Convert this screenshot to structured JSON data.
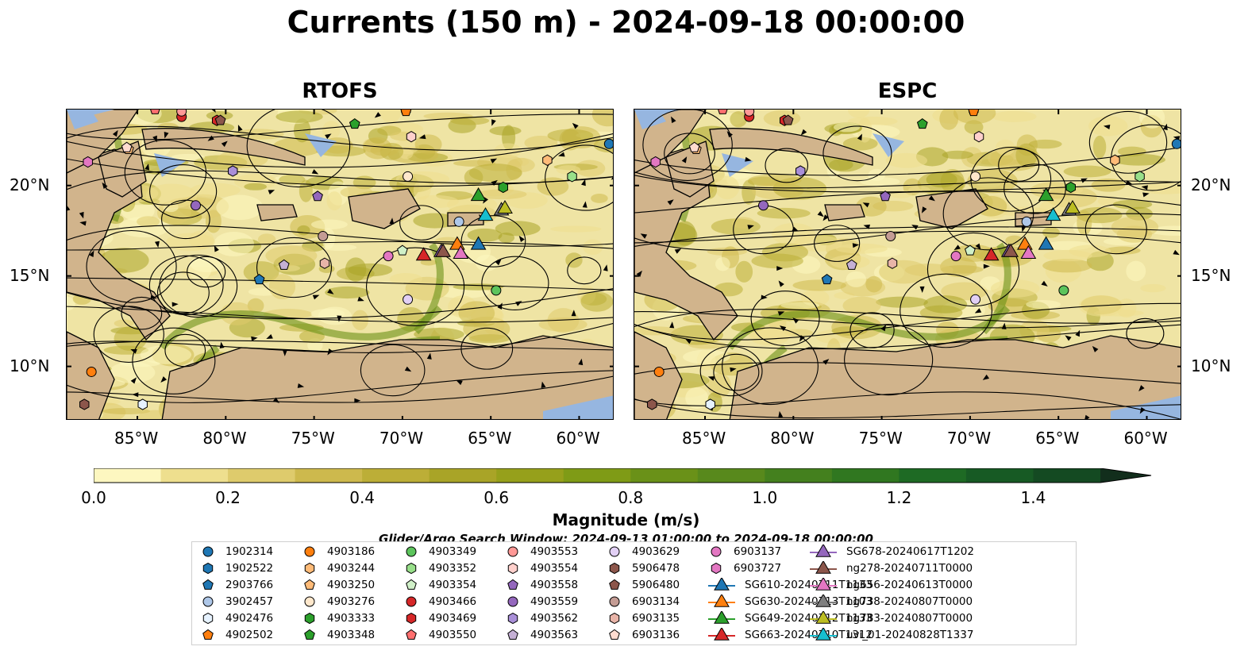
{
  "figure": {
    "title": "Currents (150 m) - 2024-09-18 00:00:00",
    "panels": [
      "RTOFS",
      "ESPC"
    ]
  },
  "axes": {
    "lon_ticks": [
      "85°W",
      "80°W",
      "75°W",
      "70°W",
      "65°W",
      "60°W"
    ],
    "lat_ticks": [
      "20°N",
      "15°N",
      "10°N"
    ],
    "lon_values": [
      -85,
      -80,
      -75,
      -70,
      -65,
      -60
    ],
    "lat_values": [
      20,
      15,
      10
    ],
    "lon_range": [
      -89,
      -58
    ],
    "lat_range": [
      7,
      24.2
    ]
  },
  "colorbar": {
    "label": "Magnitude (m/s)",
    "ticks": [
      "0.0",
      "0.2",
      "0.4",
      "0.6",
      "0.8",
      "1.0",
      "1.2",
      "1.4"
    ],
    "tick_values": [
      0,
      0.2,
      0.4,
      0.6,
      0.8,
      1.0,
      1.2,
      1.4
    ],
    "range": [
      0,
      1.5
    ],
    "extend": "max",
    "colors": [
      "#fdf7c0",
      "#eedf8e",
      "#decb6c",
      "#cdb94d",
      "#bcae37",
      "#a9a427",
      "#96a01b",
      "#7f9b16",
      "#6a9118",
      "#58891c",
      "#44801e",
      "#307720",
      "#1e6a24",
      "#175a24",
      "#144a22",
      "#122e1c"
    ]
  },
  "search_window": "Glider/Argo Search Window: 2024-09-13 01:00:00 to 2024-09-18 00:00:00",
  "legend": {
    "items": [
      {
        "label": "1902314",
        "marker": "circle",
        "color": "#1f77b4"
      },
      {
        "label": "1902522",
        "marker": "hexagon",
        "color": "#1f77b4"
      },
      {
        "label": "2903766",
        "marker": "pentagon",
        "color": "#1f77b4"
      },
      {
        "label": "3902457",
        "marker": "circle",
        "color": "#aec7e8"
      },
      {
        "label": "4902476",
        "marker": "hexagon",
        "color": "#e6f2ff"
      },
      {
        "label": "4902502",
        "marker": "pentagon",
        "color": "#ff7f0e"
      },
      {
        "label": "4903186",
        "marker": "circle",
        "color": "#ff7f0e"
      },
      {
        "label": "4903244",
        "marker": "hexagon",
        "color": "#ffbb78"
      },
      {
        "label": "4903250",
        "marker": "pentagon",
        "color": "#ffbb78"
      },
      {
        "label": "4903276",
        "marker": "circle",
        "color": "#ffe8cc"
      },
      {
        "label": "4903333",
        "marker": "hexagon",
        "color": "#2ca02c"
      },
      {
        "label": "4903348",
        "marker": "pentagon",
        "color": "#2ca02c"
      },
      {
        "label": "4903349",
        "marker": "circle",
        "color": "#5cc45c"
      },
      {
        "label": "4903352",
        "marker": "hexagon",
        "color": "#98df8a"
      },
      {
        "label": "4903354",
        "marker": "pentagon",
        "color": "#d0f0c8"
      },
      {
        "label": "4903466",
        "marker": "circle",
        "color": "#d62728"
      },
      {
        "label": "4903469",
        "marker": "hexagon",
        "color": "#d62728"
      },
      {
        "label": "4903550",
        "marker": "pentagon",
        "color": "#ff6f6f"
      },
      {
        "label": "4903553",
        "marker": "circle",
        "color": "#ff9896"
      },
      {
        "label": "4903554",
        "marker": "hexagon",
        "color": "#ffd0cc"
      },
      {
        "label": "4903558",
        "marker": "pentagon",
        "color": "#9467bd"
      },
      {
        "label": "4903559",
        "marker": "circle",
        "color": "#9467bd"
      },
      {
        "label": "4903562",
        "marker": "hexagon",
        "color": "#a98fd8"
      },
      {
        "label": "4903563",
        "marker": "pentagon",
        "color": "#c5b0d5"
      },
      {
        "label": "4903629",
        "marker": "circle",
        "color": "#e2d0f5"
      },
      {
        "label": "5906478",
        "marker": "hexagon",
        "color": "#8c564b"
      },
      {
        "label": "5906480",
        "marker": "pentagon",
        "color": "#8c564b"
      },
      {
        "label": "6903134",
        "marker": "circle",
        "color": "#c49c94"
      },
      {
        "label": "6903135",
        "marker": "hexagon",
        "color": "#e8b4a8"
      },
      {
        "label": "6903136",
        "marker": "pentagon",
        "color": "#ffdcd0"
      },
      {
        "label": "6903137",
        "marker": "circle",
        "color": "#e377c2"
      },
      {
        "label": "6903727",
        "marker": "hexagon",
        "color": "#e377c2"
      },
      {
        "label": "SG610-20240711T1133",
        "marker": "triangle",
        "color": "#1f77b4"
      },
      {
        "label": "SG630-20240713T1103",
        "marker": "triangle",
        "color": "#ff7f0e"
      },
      {
        "label": "SG649-20240712T1133",
        "marker": "triangle",
        "color": "#2ca02c"
      },
      {
        "label": "SG663-20240710T1312",
        "marker": "triangle",
        "color": "#d62728"
      },
      {
        "label": "SG678-20240617T1202",
        "marker": "triangle",
        "color": "#9467bd"
      },
      {
        "label": "ng278-20240711T0000",
        "marker": "triangle",
        "color": "#8c564b"
      },
      {
        "label": "ng656-20240613T0000",
        "marker": "triangle",
        "color": "#e377c2"
      },
      {
        "label": "ng738-20240807T0000",
        "marker": "triangle",
        "color": "#7f7f7f"
      },
      {
        "label": "ng783-20240807T0000",
        "marker": "triangle",
        "color": "#bcbd22"
      },
      {
        "label": "uvi_01-20240828T1337",
        "marker": "triangle",
        "color": "#17becf"
      }
    ]
  },
  "chart_data": [
    {
      "type": "map",
      "title": "RTOFS",
      "x_range": [
        -89,
        -58
      ],
      "y_range": [
        7,
        24.2
      ],
      "observations": [
        {
          "id": "1902314",
          "lon": -58.3,
          "lat": 22.3
        },
        {
          "id": "1902522",
          "lon": -69.8,
          "lat": 24.2
        },
        {
          "id": "2903766",
          "lon": -78.1,
          "lat": 14.8
        },
        {
          "id": "3902457",
          "lon": -66.8,
          "lat": 18.0
        },
        {
          "id": "4902476",
          "lon": -84.7,
          "lat": 7.9
        },
        {
          "id": "4902502",
          "lon": -69.8,
          "lat": 24.1
        },
        {
          "id": "4903186",
          "lon": -87.6,
          "lat": 9.7
        },
        {
          "id": "4903244",
          "lon": -61.8,
          "lat": 21.4
        },
        {
          "id": "4903250",
          "lon": -85.5,
          "lat": 22.0
        },
        {
          "id": "4903276",
          "lon": -69.7,
          "lat": 20.5
        },
        {
          "id": "4903333",
          "lon": -64.3,
          "lat": 19.9
        },
        {
          "id": "4903348",
          "lon": -72.7,
          "lat": 23.4
        },
        {
          "id": "4903349",
          "lon": -64.7,
          "lat": 14.2
        },
        {
          "id": "4903352",
          "lon": -60.4,
          "lat": 20.5
        },
        {
          "id": "4903354",
          "lon": -70.0,
          "lat": 16.4
        },
        {
          "id": "4903466",
          "lon": -82.5,
          "lat": 23.8
        },
        {
          "id": "4903469",
          "lon": -80.5,
          "lat": 23.6
        },
        {
          "id": "4903550",
          "lon": -84.0,
          "lat": 24.2
        },
        {
          "id": "4903553",
          "lon": -82.5,
          "lat": 24.1
        },
        {
          "id": "4903554",
          "lon": -69.5,
          "lat": 22.7
        },
        {
          "id": "4903558",
          "lon": -74.8,
          "lat": 19.4
        },
        {
          "id": "4903559",
          "lon": -81.7,
          "lat": 18.9
        },
        {
          "id": "4903562",
          "lon": -79.6,
          "lat": 20.8
        },
        {
          "id": "4903563",
          "lon": -76.7,
          "lat": 15.6
        },
        {
          "id": "4903629",
          "lon": -69.7,
          "lat": 13.7
        },
        {
          "id": "5906478",
          "lon": -88.0,
          "lat": 7.9
        },
        {
          "id": "5906480",
          "lon": -80.3,
          "lat": 23.6
        },
        {
          "id": "6903134",
          "lon": -74.5,
          "lat": 17.2
        },
        {
          "id": "6903135",
          "lon": -74.4,
          "lat": 15.7
        },
        {
          "id": "6903136",
          "lon": -85.6,
          "lat": 22.1
        },
        {
          "id": "6903137",
          "lon": -70.8,
          "lat": 16.1
        },
        {
          "id": "6903727",
          "lon": -87.8,
          "lat": 21.3
        }
      ],
      "gliders": [
        {
          "id": "SG610-20240711T1133",
          "lon": -65.7,
          "lat": 16.7
        },
        {
          "id": "SG630-20240713T1103",
          "lon": -66.9,
          "lat": 16.7
        },
        {
          "id": "SG649-20240712T1133",
          "lon": -65.7,
          "lat": 19.4
        },
        {
          "id": "SG663-20240710T1312",
          "lon": -68.8,
          "lat": 16.1
        },
        {
          "id": "SG678-20240617T1202",
          "lon": -67.8,
          "lat": 16.3
        },
        {
          "id": "ng278-20240711T0000",
          "lon": -67.7,
          "lat": 16.3
        },
        {
          "id": "ng656-20240613T0000",
          "lon": -66.7,
          "lat": 16.2
        },
        {
          "id": "ng738-20240807T0000",
          "lon": -64.4,
          "lat": 18.6
        },
        {
          "id": "ng783-20240807T0000",
          "lon": -64.2,
          "lat": 18.7
        },
        {
          "id": "uvi_01-20240828T1337",
          "lon": -65.3,
          "lat": 18.3
        }
      ]
    },
    {
      "type": "map",
      "title": "ESPC",
      "x_range": [
        -89,
        -58
      ],
      "y_range": [
        7,
        24.2
      ],
      "observations": "same as RTOFS",
      "gliders": "same as RTOFS"
    }
  ]
}
